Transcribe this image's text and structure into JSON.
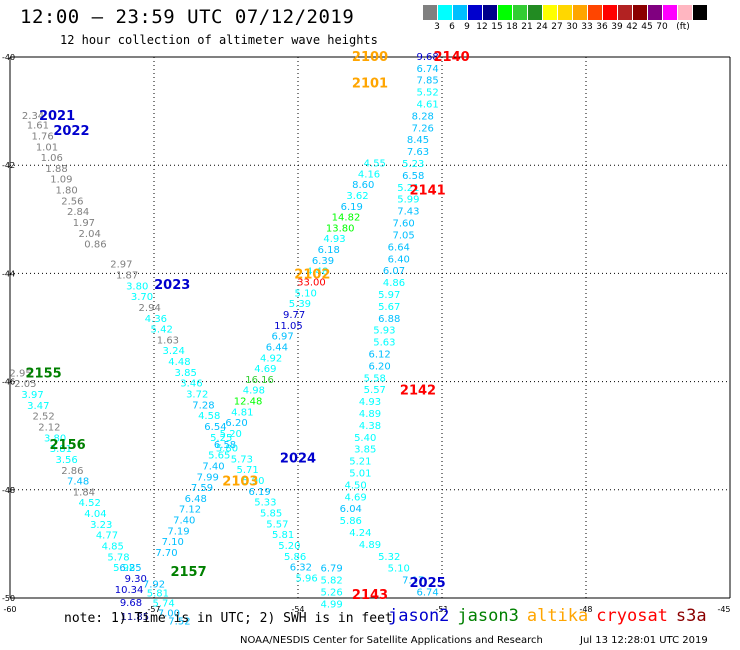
{
  "title": "12:00 — 23:59 UTC 07/12/2019",
  "subtitle": "12 hour collection of altimeter wave heights",
  "legend": {
    "colors": [
      "#808080",
      "#00ffff",
      "#00bfff",
      "#0000cd",
      "#00008b",
      "#00ff00",
      "#32cd32",
      "#228b22",
      "#ffff00",
      "#ffd700",
      "#ffa500",
      "#ff4500",
      "#ff0000",
      "#b22222",
      "#8b0000",
      "#800080",
      "#ff00ff",
      "#ffb6c1",
      "#000000"
    ],
    "labels": [
      "3",
      "6",
      "9",
      "12",
      "15",
      "18",
      "21",
      "24",
      "27",
      "30",
      "33",
      "36",
      "39",
      "42",
      "45",
      "70",
      "(ft)"
    ]
  },
  "axes": {
    "lat_labels": [
      "-40",
      "-42",
      "-44",
      "-46",
      "-48",
      "-50"
    ],
    "lon_labels": [
      "-60",
      "-57",
      "-54",
      "-51",
      "-48",
      "-45"
    ]
  },
  "note": "note: 1) Time is in UTC; 2) SWH is in feet",
  "satellites": [
    {
      "name": "jason2",
      "color": "#0000cd"
    },
    {
      "name": "jason3",
      "color": "#008000"
    },
    {
      "name": "altika",
      "color": "#ffa500"
    },
    {
      "name": "cryosat",
      "color": "#ff0000"
    },
    {
      "name": "s3a",
      "color": "#8b0000"
    }
  ],
  "footer_left": "NOAA/NESDIS Center for Satellite Applications and Research",
  "footer_right": "Jul 13 12:28:01 UTC 2019",
  "track_labels": [
    {
      "text": "2021",
      "lon": -59.02,
      "lat": -41.07,
      "color": "#0000cd"
    },
    {
      "text": "2022",
      "lon": -58.72,
      "lat": -41.35,
      "color": "#0000cd"
    },
    {
      "text": "2023",
      "lon": -56.62,
      "lat": -44.2,
      "color": "#0000cd"
    },
    {
      "text": "2024",
      "lon": -54.0,
      "lat": -47.4,
      "color": "#0000cd"
    },
    {
      "text": "2025",
      "lon": -51.3,
      "lat": -49.7,
      "color": "#0000cd"
    },
    {
      "text": "2155",
      "lon": -59.3,
      "lat": -45.83,
      "color": "#008000"
    },
    {
      "text": "2156",
      "lon": -58.8,
      "lat": -47.15,
      "color": "#008000"
    },
    {
      "text": "2157",
      "lon": -56.28,
      "lat": -49.5,
      "color": "#008000"
    },
    {
      "text": "2100",
      "lon": -52.5,
      "lat": -39.98,
      "color": "#ffa500"
    },
    {
      "text": "2101",
      "lon": -52.5,
      "lat": -40.47,
      "color": "#ffa500"
    },
    {
      "text": "2102",
      "lon": -53.7,
      "lat": -44.0,
      "color": "#ffa500"
    },
    {
      "text": "2103",
      "lon": -55.2,
      "lat": -47.83,
      "color": "#ffa500"
    },
    {
      "text": "2140",
      "lon": -50.8,
      "lat": -39.98,
      "color": "#ff0000"
    },
    {
      "text": "2141",
      "lon": -51.3,
      "lat": -42.45,
      "color": "#ff0000"
    },
    {
      "text": "2142",
      "lon": -51.5,
      "lat": -46.15,
      "color": "#ff0000"
    },
    {
      "text": "2143",
      "lon": -52.5,
      "lat": -49.93,
      "color": "#ff0000"
    }
  ],
  "wave_points": [
    {
      "t": "2.34",
      "lon": -59.52,
      "lat": -41.07,
      "c": "#808080"
    },
    {
      "t": "1.61",
      "lon": -59.42,
      "lat": -41.25,
      "c": "#808080"
    },
    {
      "t": "1.76",
      "lon": -59.32,
      "lat": -41.45,
      "c": "#808080"
    },
    {
      "t": "1.01",
      "lon": -59.23,
      "lat": -41.65,
      "c": "#808080"
    },
    {
      "t": "1.06",
      "lon": -59.13,
      "lat": -41.85,
      "c": "#808080"
    },
    {
      "t": "1.88",
      "lon": -59.03,
      "lat": -42.05,
      "c": "#808080"
    },
    {
      "t": "1.09",
      "lon": -58.93,
      "lat": -42.25,
      "c": "#808080"
    },
    {
      "t": "1.80",
      "lon": -58.82,
      "lat": -42.45,
      "c": "#808080"
    },
    {
      "t": "2.56",
      "lon": -58.7,
      "lat": -42.65,
      "c": "#808080"
    },
    {
      "t": "2.84",
      "lon": -58.58,
      "lat": -42.85,
      "c": "#808080"
    },
    {
      "t": "1.97",
      "lon": -58.46,
      "lat": -43.05,
      "c": "#808080"
    },
    {
      "t": "2.04",
      "lon": -58.34,
      "lat": -43.25,
      "c": "#808080"
    },
    {
      "t": "0.86",
      "lon": -58.22,
      "lat": -43.45,
      "c": "#808080"
    },
    {
      "t": "2.97",
      "lon": -57.68,
      "lat": -43.82,
      "c": "#808080"
    },
    {
      "t": "1.87",
      "lon": -57.56,
      "lat": -44.02,
      "c": "#808080"
    },
    {
      "t": "3.80",
      "lon": -57.35,
      "lat": -44.22,
      "c": "#00ffff"
    },
    {
      "t": "3.70",
      "lon": -57.25,
      "lat": -44.42,
      "c": "#00ffff"
    },
    {
      "t": "2.94",
      "lon": -57.09,
      "lat": -44.62,
      "c": "#808080"
    },
    {
      "t": "4.36",
      "lon": -56.96,
      "lat": -44.82,
      "c": "#00ffff"
    },
    {
      "t": "5.42",
      "lon": -56.84,
      "lat": -45.02,
      "c": "#00ffff"
    },
    {
      "t": "1.63",
      "lon": -56.71,
      "lat": -45.22,
      "c": "#808080"
    },
    {
      "t": "3.24",
      "lon": -56.59,
      "lat": -45.42,
      "c": "#00ffff"
    },
    {
      "t": "4.48",
      "lon": -56.47,
      "lat": -45.62,
      "c": "#00ffff"
    },
    {
      "t": "3.85",
      "lon": -56.34,
      "lat": -45.82,
      "c": "#00ffff"
    },
    {
      "t": "3.46",
      "lon": -56.22,
      "lat": -46.02,
      "c": "#00ffff"
    },
    {
      "t": "3.72",
      "lon": -56.1,
      "lat": -46.22,
      "c": "#00ffff"
    },
    {
      "t": "7.28",
      "lon": -55.97,
      "lat": -46.42,
      "c": "#00bfff"
    },
    {
      "t": "4.58",
      "lon": -55.85,
      "lat": -46.62,
      "c": "#00ffff"
    },
    {
      "t": "6.54",
      "lon": -55.72,
      "lat": -46.82,
      "c": "#00bfff"
    },
    {
      "t": "5.25",
      "lon": -55.6,
      "lat": -47.02,
      "c": "#00ffff"
    },
    {
      "t": "5.80",
      "lon": -55.48,
      "lat": -47.22,
      "c": "#00ffff"
    },
    {
      "t": "5.73",
      "lon": -55.17,
      "lat": -47.42,
      "c": "#00ffff"
    },
    {
      "t": "5.71",
      "lon": -55.05,
      "lat": -47.62,
      "c": "#00ffff"
    },
    {
      "t": "5.90",
      "lon": -54.93,
      "lat": -47.82,
      "c": "#00ffff"
    },
    {
      "t": "6.19",
      "lon": -54.8,
      "lat": -48.02,
      "c": "#00bfff"
    },
    {
      "t": "5.33",
      "lon": -54.68,
      "lat": -48.22,
      "c": "#00ffff"
    },
    {
      "t": "5.85",
      "lon": -54.56,
      "lat": -48.42,
      "c": "#00ffff"
    },
    {
      "t": "5.57",
      "lon": -54.43,
      "lat": -48.62,
      "c": "#00ffff"
    },
    {
      "t": "5.81",
      "lon": -54.31,
      "lat": -48.82,
      "c": "#00ffff"
    },
    {
      "t": "5.20",
      "lon": -54.18,
      "lat": -49.02,
      "c": "#00ffff"
    },
    {
      "t": "5.86",
      "lon": -54.06,
      "lat": -49.22,
      "c": "#00ffff"
    },
    {
      "t": "6.32",
      "lon": -53.94,
      "lat": -49.42,
      "c": "#00bfff"
    },
    {
      "t": "5.96",
      "lon": -53.82,
      "lat": -49.62,
      "c": "#00ffff"
    },
    {
      "t": "2.95",
      "lon": -59.78,
      "lat": -45.83,
      "c": "#808080"
    },
    {
      "t": "2.05",
      "lon": -59.68,
      "lat": -46.03,
      "c": "#808080"
    },
    {
      "t": "3.97",
      "lon": -59.53,
      "lat": -46.23,
      "c": "#00ffff"
    },
    {
      "t": "3.47",
      "lon": -59.41,
      "lat": -46.43,
      "c": "#00ffff"
    },
    {
      "t": "2.52",
      "lon": -59.3,
      "lat": -46.63,
      "c": "#808080"
    },
    {
      "t": "2.12",
      "lon": -59.18,
      "lat": -46.83,
      "c": "#808080"
    },
    {
      "t": "3.80",
      "lon": -59.06,
      "lat": -47.03,
      "c": "#00ffff"
    },
    {
      "t": "3.81",
      "lon": -58.94,
      "lat": -47.23,
      "c": "#00ffff"
    },
    {
      "t": "3.56",
      "lon": -58.82,
      "lat": -47.43,
      "c": "#00ffff"
    },
    {
      "t": "2.86",
      "lon": -58.7,
      "lat": -47.63,
      "c": "#808080"
    },
    {
      "t": "7.48",
      "lon": -58.58,
      "lat": -47.83,
      "c": "#00bfff"
    },
    {
      "t": "1.84",
      "lon": -58.46,
      "lat": -48.03,
      "c": "#808080"
    },
    {
      "t": "4.52",
      "lon": -58.34,
      "lat": -48.23,
      "c": "#00ffff"
    },
    {
      "t": "4.04",
      "lon": -58.22,
      "lat": -48.43,
      "c": "#00ffff"
    },
    {
      "t": "3.23",
      "lon": -58.1,
      "lat": -48.63,
      "c": "#00ffff"
    },
    {
      "t": "4.77",
      "lon": -57.98,
      "lat": -48.83,
      "c": "#00ffff"
    },
    {
      "t": "4.85",
      "lon": -57.86,
      "lat": -49.03,
      "c": "#00ffff"
    },
    {
      "t": "5.78",
      "lon": -57.74,
      "lat": -49.23,
      "c": "#00ffff"
    },
    {
      "t": "5.98",
      "lon": -57.62,
      "lat": -49.43,
      "c": "#00ffff"
    },
    {
      "t": "6.25",
      "lon": -57.49,
      "lat": -49.43,
      "c": "#00bfff"
    },
    {
      "t": "9.30",
      "lon": -57.38,
      "lat": -49.63,
      "c": "#0000cd"
    },
    {
      "t": "7.92",
      "lon": -57.0,
      "lat": -49.73,
      "c": "#00bfff"
    },
    {
      "t": "10.34",
      "lon": -57.52,
      "lat": -49.83,
      "c": "#0000cd"
    },
    {
      "t": "5.81",
      "lon": -56.92,
      "lat": -49.9,
      "c": "#00ffff"
    },
    {
      "t": "5.74",
      "lon": -56.8,
      "lat": -50.08,
      "c": "#00ffff"
    },
    {
      "t": "9.68",
      "lon": -57.48,
      "lat": -50.07,
      "c": "#0000cd"
    },
    {
      "t": "7.00",
      "lon": -56.69,
      "lat": -50.27,
      "c": "#00bfff"
    },
    {
      "t": "11.85",
      "lon": -57.4,
      "lat": -50.33,
      "c": "#00008b"
    },
    {
      "t": "7.52",
      "lon": -56.47,
      "lat": -50.42,
      "c": "#00bfff"
    },
    {
      "t": "7.70",
      "lon": -56.74,
      "lat": -49.15,
      "c": "#00bfff"
    },
    {
      "t": "7.10",
      "lon": -56.61,
      "lat": -48.95,
      "c": "#00bfff"
    },
    {
      "t": "7.19",
      "lon": -56.49,
      "lat": -48.75,
      "c": "#00bfff"
    },
    {
      "t": "7.40",
      "lon": -56.37,
      "lat": -48.55,
      "c": "#00bfff"
    },
    {
      "t": "7.12",
      "lon": -56.25,
      "lat": -48.35,
      "c": "#00bfff"
    },
    {
      "t": "6.48",
      "lon": -56.13,
      "lat": -48.15,
      "c": "#00bfff"
    },
    {
      "t": "7.59",
      "lon": -56.0,
      "lat": -47.95,
      "c": "#00bfff"
    },
    {
      "t": "7.99",
      "lon": -55.88,
      "lat": -47.75,
      "c": "#00bfff"
    },
    {
      "t": "7.40",
      "lon": -55.76,
      "lat": -47.55,
      "c": "#00bfff"
    },
    {
      "t": "5.65",
      "lon": -55.64,
      "lat": -47.35,
      "c": "#00ffff"
    },
    {
      "t": "6.58",
      "lon": -55.52,
      "lat": -47.15,
      "c": "#00bfff"
    },
    {
      "t": "5.20",
      "lon": -55.4,
      "lat": -46.95,
      "c": "#00ffff"
    },
    {
      "t": "6.20",
      "lon": -55.28,
      "lat": -46.75,
      "c": "#00bfff"
    },
    {
      "t": "4.81",
      "lon": -55.16,
      "lat": -46.55,
      "c": "#00ffff"
    },
    {
      "t": "12.48",
      "lon": -55.04,
      "lat": -46.35,
      "c": "#00ff00"
    },
    {
      "t": "4.98",
      "lon": -54.92,
      "lat": -46.15,
      "c": "#00ffff"
    },
    {
      "t": "16.16",
      "lon": -54.8,
      "lat": -45.95,
      "c": "#32cd32"
    },
    {
      "t": "4.69",
      "lon": -54.68,
      "lat": -45.75,
      "c": "#00ffff"
    },
    {
      "t": "4.92",
      "lon": -54.56,
      "lat": -45.55,
      "c": "#00ffff"
    },
    {
      "t": "6.44",
      "lon": -54.44,
      "lat": -45.35,
      "c": "#00bfff"
    },
    {
      "t": "6.97",
      "lon": -54.32,
      "lat": -45.15,
      "c": "#00bfff"
    },
    {
      "t": "11.05",
      "lon": -54.2,
      "lat": -44.95,
      "c": "#0000cd"
    },
    {
      "t": "9.77",
      "lon": -54.08,
      "lat": -44.75,
      "c": "#0000cd"
    },
    {
      "t": "5.39",
      "lon": -53.96,
      "lat": -44.55,
      "c": "#00ffff"
    },
    {
      "t": "5.10",
      "lon": -53.84,
      "lat": -44.35,
      "c": "#00ffff"
    },
    {
      "t": "33.00",
      "lon": -53.72,
      "lat": -44.15,
      "c": "#ff0000"
    },
    {
      "t": "4.48",
      "lon": -53.6,
      "lat": -43.95,
      "c": "#00ffff"
    },
    {
      "t": "6.39",
      "lon": -53.48,
      "lat": -43.75,
      "c": "#00bfff"
    },
    {
      "t": "6.18",
      "lon": -53.36,
      "lat": -43.55,
      "c": "#00bfff"
    },
    {
      "t": "4.93",
      "lon": -53.24,
      "lat": -43.35,
      "c": "#00ffff"
    },
    {
      "t": "13.80",
      "lon": -53.12,
      "lat": -43.15,
      "c": "#00ff00"
    },
    {
      "t": "14.82",
      "lon": -53.0,
      "lat": -42.95,
      "c": "#00ff00"
    },
    {
      "t": "6.19",
      "lon": -52.88,
      "lat": -42.75,
      "c": "#00bfff"
    },
    {
      "t": "3.62",
      "lon": -52.76,
      "lat": -42.55,
      "c": "#00ffff"
    },
    {
      "t": "8.60",
      "lon": -52.64,
      "lat": -42.35,
      "c": "#00bfff"
    },
    {
      "t": "4.16",
      "lon": -52.52,
      "lat": -42.15,
      "c": "#00ffff"
    },
    {
      "t": "4.55",
      "lon": -52.4,
      "lat": -41.95,
      "c": "#00ffff"
    },
    {
      "t": "9.68",
      "lon": -51.3,
      "lat": -39.98,
      "c": "#0000cd"
    },
    {
      "t": "6.74",
      "lon": -51.3,
      "lat": -40.2,
      "c": "#00bfff"
    },
    {
      "t": "7.85",
      "lon": -51.3,
      "lat": -40.42,
      "c": "#00bfff"
    },
    {
      "t": "5.52",
      "lon": -51.3,
      "lat": -40.64,
      "c": "#00ffff"
    },
    {
      "t": "4.61",
      "lon": -51.3,
      "lat": -40.86,
      "c": "#00ffff"
    },
    {
      "t": "8.28",
      "lon": -51.4,
      "lat": -41.08,
      "c": "#00bfff"
    },
    {
      "t": "7.26",
      "lon": -51.4,
      "lat": -41.3,
      "c": "#00bfff"
    },
    {
      "t": "8.45",
      "lon": -51.5,
      "lat": -41.52,
      "c": "#00bfff"
    },
    {
      "t": "7.63",
      "lon": -51.5,
      "lat": -41.74,
      "c": "#00bfff"
    },
    {
      "t": "5.23",
      "lon": -51.6,
      "lat": -41.96,
      "c": "#00ffff"
    },
    {
      "t": "6.58",
      "lon": -51.6,
      "lat": -42.18,
      "c": "#00bfff"
    },
    {
      "t": "5.21",
      "lon": -51.7,
      "lat": -42.4,
      "c": "#00ffff"
    },
    {
      "t": "5.99",
      "lon": -51.7,
      "lat": -42.62,
      "c": "#00ffff"
    },
    {
      "t": "7.43",
      "lon": -51.7,
      "lat": -42.84,
      "c": "#00bfff"
    },
    {
      "t": "7.60",
      "lon": -51.8,
      "lat": -43.06,
      "c": "#00bfff"
    },
    {
      "t": "7.05",
      "lon": -51.8,
      "lat": -43.28,
      "c": "#00bfff"
    },
    {
      "t": "6.64",
      "lon": -51.9,
      "lat": -43.5,
      "c": "#00bfff"
    },
    {
      "t": "6.40",
      "lon": -51.9,
      "lat": -43.72,
      "c": "#00bfff"
    },
    {
      "t": "6.07",
      "lon": -52.0,
      "lat": -43.94,
      "c": "#00bfff"
    },
    {
      "t": "4.86",
      "lon": -52.0,
      "lat": -44.16,
      "c": "#00ffff"
    },
    {
      "t": "5.97",
      "lon": -52.1,
      "lat": -44.38,
      "c": "#00ffff"
    },
    {
      "t": "5.67",
      "lon": -52.1,
      "lat": -44.6,
      "c": "#00ffff"
    },
    {
      "t": "6.88",
      "lon": -52.1,
      "lat": -44.82,
      "c": "#00bfff"
    },
    {
      "t": "5.93",
      "lon": -52.2,
      "lat": -45.04,
      "c": "#00ffff"
    },
    {
      "t": "5.63",
      "lon": -52.2,
      "lat": -45.26,
      "c": "#00ffff"
    },
    {
      "t": "6.12",
      "lon": -52.3,
      "lat": -45.48,
      "c": "#00bfff"
    },
    {
      "t": "6.20",
      "lon": -52.3,
      "lat": -45.7,
      "c": "#00bfff"
    },
    {
      "t": "5.58",
      "lon": -52.4,
      "lat": -45.92,
      "c": "#00ffff"
    },
    {
      "t": "5.57",
      "lon": -52.4,
      "lat": -46.14,
      "c": "#00ffff"
    },
    {
      "t": "4.93",
      "lon": -52.5,
      "lat": -46.36,
      "c": "#00ffff"
    },
    {
      "t": "4.89",
      "lon": -52.5,
      "lat": -46.58,
      "c": "#00ffff"
    },
    {
      "t": "4.38",
      "lon": -52.5,
      "lat": -46.8,
      "c": "#00ffff"
    },
    {
      "t": "5.40",
      "lon": -52.6,
      "lat": -47.02,
      "c": "#00ffff"
    },
    {
      "t": "3.85",
      "lon": -52.6,
      "lat": -47.24,
      "c": "#00ffff"
    },
    {
      "t": "5.21",
      "lon": -52.7,
      "lat": -47.46,
      "c": "#00ffff"
    },
    {
      "t": "5.01",
      "lon": -52.7,
      "lat": -47.68,
      "c": "#00ffff"
    },
    {
      "t": "4.50",
      "lon": -52.8,
      "lat": -47.9,
      "c": "#00ffff"
    },
    {
      "t": "4.69",
      "lon": -52.8,
      "lat": -48.12,
      "c": "#00ffff"
    },
    {
      "t": "6.04",
      "lon": -52.9,
      "lat": -48.34,
      "c": "#00bfff"
    },
    {
      "t": "5.86",
      "lon": -52.9,
      "lat": -48.56,
      "c": "#00ffff"
    },
    {
      "t": "4.24",
      "lon": -52.7,
      "lat": -48.78,
      "c": "#00ffff"
    },
    {
      "t": "4.89",
      "lon": -52.5,
      "lat": -49.0,
      "c": "#00ffff"
    },
    {
      "t": "5.32",
      "lon": -52.1,
      "lat": -49.22,
      "c": "#00ffff"
    },
    {
      "t": "5.10",
      "lon": -51.9,
      "lat": -49.44,
      "c": "#00ffff"
    },
    {
      "t": "7.17",
      "lon": -51.6,
      "lat": -49.66,
      "c": "#00bfff"
    },
    {
      "t": "6.74",
      "lon": -51.3,
      "lat": -49.88,
      "c": "#00bfff"
    },
    {
      "t": "6.79",
      "lon": -53.3,
      "lat": -49.44,
      "c": "#00bfff"
    },
    {
      "t": "5.82",
      "lon": -53.3,
      "lat": -49.66,
      "c": "#00ffff"
    },
    {
      "t": "5.26",
      "lon": -53.3,
      "lat": -49.88,
      "c": "#00ffff"
    },
    {
      "t": "4.99",
      "lon": -53.3,
      "lat": -50.1,
      "c": "#00ffff"
    }
  ]
}
